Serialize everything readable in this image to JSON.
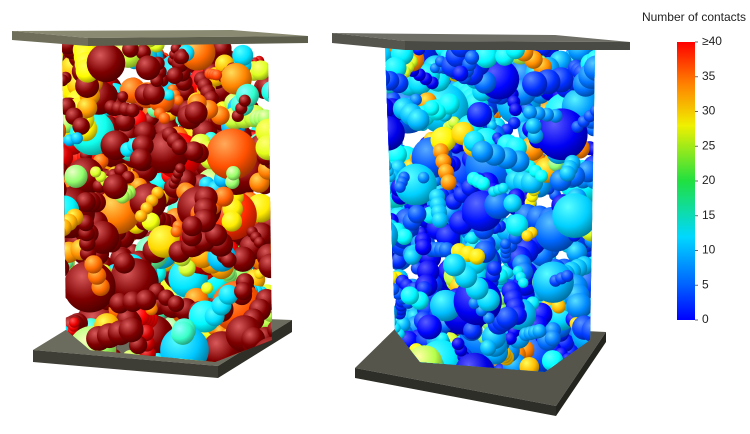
{
  "colorbar": {
    "title": "Number of contacts",
    "lim": [
      0,
      40
    ],
    "ticks": [
      {
        "value": 40,
        "label": "≥40"
      },
      35,
      30,
      25,
      20,
      15,
      10,
      5,
      0
    ]
  }
}
